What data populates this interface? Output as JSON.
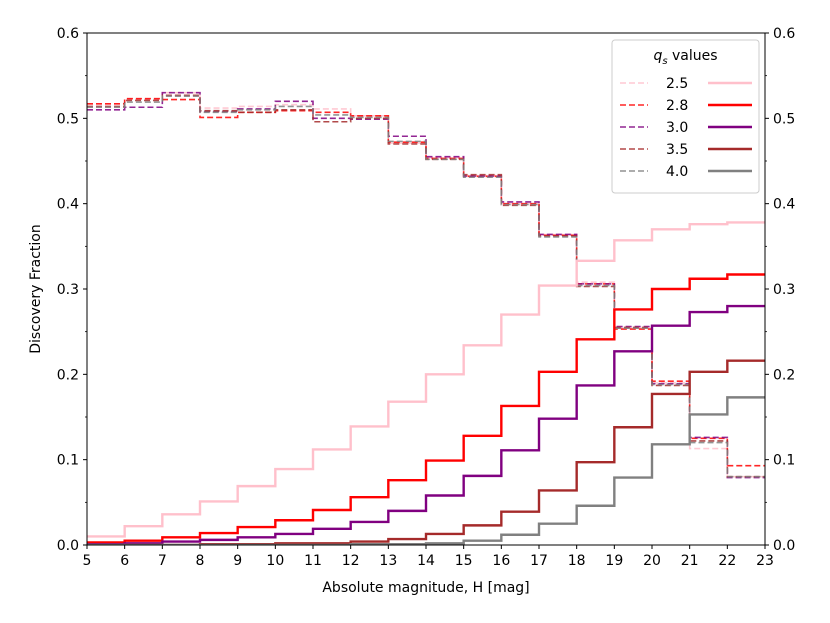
{
  "chart_data": {
    "type": "line",
    "style": "step",
    "xlabel": "Absolute magnitude, H [mag]",
    "ylabel": "Discovery Fraction",
    "xlim": [
      5,
      23
    ],
    "ylim": [
      0,
      0.6
    ],
    "xticks": [
      5,
      6,
      7,
      8,
      9,
      10,
      11,
      12,
      13,
      14,
      15,
      16,
      17,
      18,
      19,
      20,
      21,
      22,
      23
    ],
    "yticks": [
      0.0,
      0.1,
      0.2,
      0.3,
      0.4,
      0.5,
      0.6
    ],
    "ytick_labels": [
      "0.0",
      "0.1",
      "0.2",
      "0.3",
      "0.4",
      "0.5",
      "0.6"
    ],
    "right_axis_mirrored": true,
    "bins": [
      5,
      6,
      7,
      8,
      9,
      10,
      11,
      12,
      13,
      14,
      15,
      16,
      17,
      18,
      19,
      20,
      21,
      22,
      23
    ],
    "legend": {
      "title_symbol": "q",
      "title_subscript": "s",
      "title_rest": " values",
      "position": "top-right"
    },
    "series": [
      {
        "name": "2.5",
        "color": "#ffc0cb",
        "solid": [
          0.01,
          0.022,
          0.036,
          0.051,
          0.069,
          0.089,
          0.112,
          0.139,
          0.168,
          0.2,
          0.234,
          0.27,
          0.304,
          0.333,
          0.357,
          0.37,
          0.376,
          0.378
        ],
        "dashed": [
          0.517,
          0.523,
          0.53,
          0.512,
          0.514,
          0.516,
          0.511,
          0.503,
          0.471,
          0.454,
          0.433,
          0.4,
          0.364,
          0.308,
          0.254,
          0.19,
          0.113,
          0.08
        ]
      },
      {
        "name": "2.8",
        "color": "#ff0000",
        "solid": [
          0.003,
          0.005,
          0.009,
          0.014,
          0.021,
          0.029,
          0.041,
          0.056,
          0.076,
          0.099,
          0.128,
          0.163,
          0.203,
          0.241,
          0.276,
          0.3,
          0.312,
          0.317
        ],
        "dashed": [
          0.517,
          0.523,
          0.522,
          0.501,
          0.507,
          0.509,
          0.507,
          0.503,
          0.472,
          0.453,
          0.432,
          0.4,
          0.363,
          0.306,
          0.253,
          0.192,
          0.125,
          0.093
        ]
      },
      {
        "name": "3.0",
        "color": "#800080",
        "solid": [
          0.001,
          0.002,
          0.004,
          0.006,
          0.009,
          0.013,
          0.019,
          0.027,
          0.04,
          0.058,
          0.081,
          0.111,
          0.148,
          0.187,
          0.227,
          0.257,
          0.273,
          0.28
        ],
        "dashed": [
          0.51,
          0.513,
          0.53,
          0.508,
          0.511,
          0.52,
          0.5,
          0.499,
          0.479,
          0.455,
          0.432,
          0.402,
          0.364,
          0.306,
          0.256,
          0.189,
          0.126,
          0.079
        ]
      },
      {
        "name": "3.5",
        "color": "#a52a2a",
        "solid": [
          0.0,
          0.0,
          0.0,
          0.001,
          0.001,
          0.002,
          0.002,
          0.004,
          0.007,
          0.013,
          0.023,
          0.039,
          0.064,
          0.097,
          0.138,
          0.177,
          0.203,
          0.216
        ],
        "dashed": [
          0.514,
          0.521,
          0.527,
          0.509,
          0.507,
          0.51,
          0.496,
          0.5,
          0.47,
          0.452,
          0.434,
          0.398,
          0.362,
          0.303,
          0.255,
          0.187,
          0.122,
          0.08
        ]
      },
      {
        "name": "4.0",
        "color": "#808080",
        "solid": [
          0.0,
          0.0,
          0.0,
          0.0,
          0.0,
          0.0,
          0.0,
          0.001,
          0.001,
          0.002,
          0.005,
          0.012,
          0.025,
          0.046,
          0.079,
          0.118,
          0.153,
          0.173
        ],
        "dashed": [
          0.513,
          0.519,
          0.526,
          0.507,
          0.51,
          0.514,
          0.504,
          0.501,
          0.473,
          0.452,
          0.431,
          0.399,
          0.361,
          0.304,
          0.254,
          0.188,
          0.12,
          0.08
        ]
      }
    ]
  }
}
